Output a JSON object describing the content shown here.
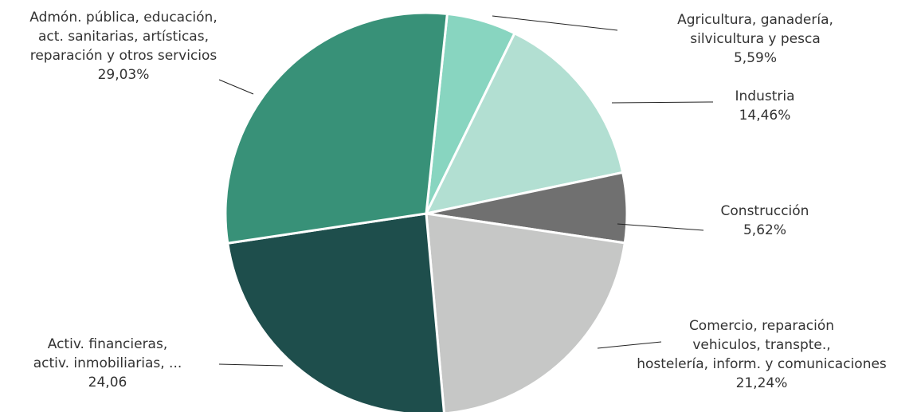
{
  "chart_data": {
    "type": "pie",
    "categories": [
      [
        "Agricultura, ganadería,",
        "silvicultura y pesca"
      ],
      [
        "Industria"
      ],
      [
        "Construcción"
      ],
      [
        "Comercio, reparación",
        "vehiculos, transpte.,",
        "hostelería, inform. y comunicaciones"
      ],
      [
        "Activ. financieras,",
        "activ. inmobiliarias, ..."
      ],
      [
        "Admón. pública, educación,",
        "act. sanitarias, artísticas,",
        "reparación y otros servicios"
      ]
    ],
    "values": [
      5.59,
      14.46,
      5.62,
      21.24,
      24.06,
      29.03
    ],
    "value_labels": [
      "5,59%",
      "14,46%",
      "5,62%",
      "21,24%",
      "24,06",
      "29,03%"
    ],
    "colors": [
      "#88d5c0",
      "#b2dfd2",
      "#707070",
      "#c6c7c6",
      "#1e4e4c",
      "#389178"
    ]
  }
}
